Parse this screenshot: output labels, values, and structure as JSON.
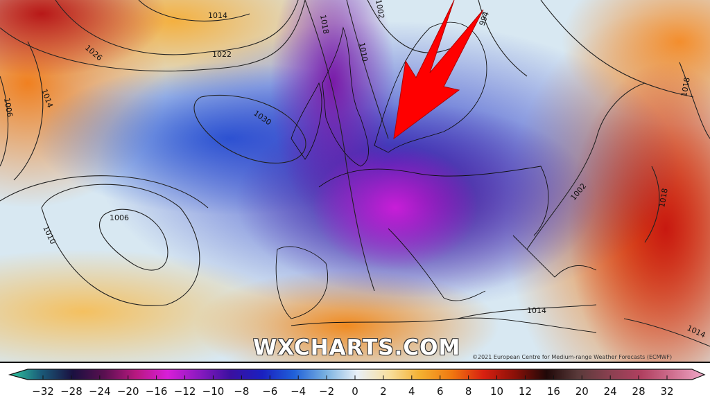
{
  "map": {
    "isobar_labels": [
      {
        "text": "1014"
      },
      {
        "text": "1026"
      },
      {
        "text": "1022"
      },
      {
        "text": "1014"
      },
      {
        "text": "1006"
      },
      {
        "text": "1030"
      },
      {
        "text": "1006"
      },
      {
        "text": "1010"
      },
      {
        "text": "1018"
      },
      {
        "text": "1010"
      },
      {
        "text": "1002"
      },
      {
        "text": "994"
      },
      {
        "text": "1018"
      },
      {
        "text": "1002"
      },
      {
        "text": "1018"
      },
      {
        "text": "1014"
      },
      {
        "text": "1014"
      }
    ],
    "arrow_color": "#ff0000",
    "watermark": "WXCHARTS.COM",
    "copyright": "©2021 European Centre for Medium-range Weather Forecasts (ECMWF)"
  },
  "colorbar": {
    "ticks": [
      "−32",
      "−28",
      "−24",
      "−20",
      "−16",
      "−12",
      "−10",
      "−8",
      "−6",
      "−4",
      "−2",
      "0",
      "2",
      "4",
      "6",
      "8",
      "10",
      "12",
      "16",
      "20",
      "24",
      "28",
      "32"
    ],
    "colors": [
      "#2fc8a0",
      "#1a5a78",
      "#1a1040",
      "#5a1050",
      "#b81880",
      "#d81ed8",
      "#8a1ac0",
      "#3a10a0",
      "#1a20c0",
      "#2060d8",
      "#78b0e0",
      "#e8f0f8",
      "#f8e0a0",
      "#f4b030",
      "#f07810",
      "#d82010",
      "#8a1008",
      "#200808",
      "#5a3a3a",
      "#8a4050",
      "#b04060",
      "#d07090",
      "#f0a8c8"
    ]
  }
}
